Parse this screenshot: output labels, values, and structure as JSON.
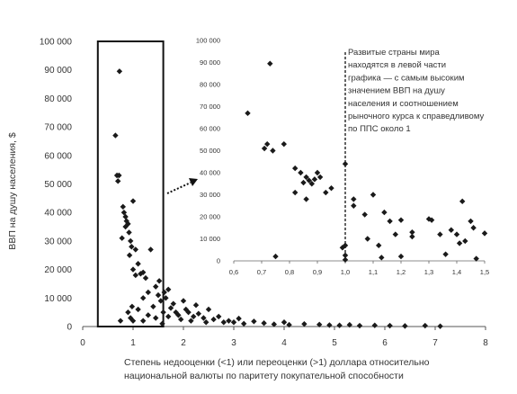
{
  "chart_data": [
    {
      "type": "scatter",
      "name": "main",
      "ylabel": "ВВП на душу населения, $",
      "xlabel_lines": [
        "Степень недооценки (<1) или переоценки (>1) доллара относительно",
        "национальной валюты по паритету покупательной способности"
      ],
      "xlim": [
        0,
        8
      ],
      "ylim": [
        0,
        100000
      ],
      "x_ticks": [
        0,
        1,
        2,
        3,
        4,
        5,
        6,
        7,
        8
      ],
      "x_tick_labels": [
        "0",
        "1",
        "2",
        "3",
        "4",
        "5",
        "6",
        "7",
        "8"
      ],
      "y_ticks": [
        0,
        10000,
        20000,
        30000,
        40000,
        50000,
        60000,
        70000,
        80000,
        90000,
        100000
      ],
      "y_tick_labels": [
        "0",
        "10 000",
        "20 000",
        "30 000",
        "40 000",
        "50 000",
        "60 000",
        "70 000",
        "80 000",
        "90 000",
        "100 000"
      ],
      "marker": "diamond",
      "marker_color": "#1a1a1a",
      "grid": false,
      "highlight_box_x": [
        0.3,
        1.6
      ],
      "highlight_box_y": [
        0,
        100000
      ],
      "points": [
        [
          0.73,
          89500
        ],
        [
          0.65,
          67000
        ],
        [
          0.68,
          53000
        ],
        [
          0.72,
          53000
        ],
        [
          0.7,
          51000
        ],
        [
          0.75,
          2000
        ],
        [
          0.8,
          42000
        ],
        [
          0.82,
          40000
        ],
        [
          0.85,
          38500
        ],
        [
          0.87,
          37000
        ],
        [
          0.9,
          36000
        ],
        [
          0.85,
          35000
        ],
        [
          0.92,
          33000
        ],
        [
          0.78,
          31000
        ],
        [
          0.95,
          30000
        ],
        [
          1.0,
          44000
        ],
        [
          0.97,
          28000
        ],
        [
          1.05,
          27000
        ],
        [
          0.93,
          25000
        ],
        [
          1.1,
          22000
        ],
        [
          1.0,
          20000
        ],
        [
          1.05,
          18000
        ],
        [
          1.15,
          18500
        ],
        [
          1.2,
          19000
        ],
        [
          1.25,
          17000
        ],
        [
          1.35,
          27000
        ],
        [
          0.98,
          7000
        ],
        [
          0.9,
          5000
        ],
        [
          0.95,
          3000
        ],
        [
          1.0,
          2000
        ],
        [
          1.1,
          6000
        ],
        [
          1.2,
          10000
        ],
        [
          1.3,
          12000
        ],
        [
          1.45,
          14000
        ],
        [
          1.5,
          11000
        ],
        [
          1.55,
          9000
        ],
        [
          1.4,
          7000
        ],
        [
          1.3,
          4000
        ],
        [
          1.2,
          2000
        ],
        [
          1.6,
          5000
        ],
        [
          1.7,
          13000
        ],
        [
          1.65,
          10000
        ],
        [
          1.8,
          8000
        ],
        [
          1.75,
          6500
        ],
        [
          1.85,
          5000
        ],
        [
          1.9,
          4000
        ],
        [
          2.0,
          9000
        ],
        [
          2.05,
          6000
        ],
        [
          2.1,
          5000
        ],
        [
          2.2,
          3500
        ],
        [
          2.3,
          4500
        ],
        [
          2.4,
          3000
        ],
        [
          1.95,
          2500
        ],
        [
          2.15,
          2000
        ],
        [
          2.5,
          6000
        ],
        [
          2.6,
          2500
        ],
        [
          2.7,
          3500
        ],
        [
          2.8,
          1500
        ],
        [
          2.9,
          2000
        ],
        [
          3.0,
          1500
        ],
        [
          3.2,
          1000
        ],
        [
          3.4,
          1800
        ],
        [
          3.6,
          1200
        ],
        [
          3.8,
          800
        ],
        [
          4.0,
          1500
        ],
        [
          4.1,
          600
        ],
        [
          4.4,
          900
        ],
        [
          4.7,
          700
        ],
        [
          4.9,
          500
        ],
        [
          5.1,
          400
        ],
        [
          5.3,
          600
        ],
        [
          5.5,
          300
        ],
        [
          5.8,
          400
        ],
        [
          6.1,
          300
        ],
        [
          6.4,
          200
        ],
        [
          6.8,
          300
        ],
        [
          7.1,
          100
        ],
        [
          1.58,
          1000
        ],
        [
          1.45,
          3000
        ],
        [
          1.7,
          3500
        ],
        [
          2.25,
          7500
        ],
        [
          2.45,
          1500
        ],
        [
          3.1,
          2800
        ],
        [
          1.52,
          16000
        ],
        [
          1.62,
          12000
        ]
      ]
    },
    {
      "type": "scatter",
      "name": "inset",
      "xlim": [
        0.6,
        1.5
      ],
      "ylim": [
        0,
        100000
      ],
      "x_ticks": [
        0.6,
        0.7,
        0.8,
        0.9,
        1.0,
        1.1,
        1.2,
        1.3,
        1.4,
        1.5
      ],
      "x_tick_labels": [
        "0,6",
        "0,7",
        "0,8",
        "0,9",
        "1,0",
        "1,1",
        "1,2",
        "1,3",
        "1,4",
        "1,5"
      ],
      "y_ticks": [
        0,
        10000,
        20000,
        30000,
        40000,
        50000,
        60000,
        70000,
        80000,
        90000,
        100000
      ],
      "y_tick_labels": [
        "0",
        "10 000",
        "20 000",
        "30 000",
        "40 000",
        "50 000",
        "60 000",
        "70 000",
        "80 000",
        "90 000",
        "100 000"
      ],
      "reference_line_x": 1.0,
      "marker": "diamond",
      "marker_color": "#1a1a1a",
      "grid": false,
      "annotation_lines": [
        "Развитые страны мира",
        "находятся в левой части",
        "графика — с самым высоким",
        "значением ВВП на душу",
        "населения и соотношением",
        "рыночного курса к справедливому",
        "по ППС около 1"
      ],
      "points": [
        [
          0.73,
          89500
        ],
        [
          0.65,
          67000
        ],
        [
          0.72,
          53000
        ],
        [
          0.71,
          51000
        ],
        [
          0.74,
          50000
        ],
        [
          0.78,
          53000
        ],
        [
          0.75,
          2000
        ],
        [
          0.82,
          42000
        ],
        [
          0.84,
          40000
        ],
        [
          0.86,
          38000
        ],
        [
          0.87,
          36500
        ],
        [
          0.85,
          35500
        ],
        [
          0.88,
          35000
        ],
        [
          0.9,
          40000
        ],
        [
          0.91,
          38000
        ],
        [
          0.89,
          37000
        ],
        [
          0.82,
          31000
        ],
        [
          0.86,
          28000
        ],
        [
          0.93,
          31000
        ],
        [
          0.95,
          33000
        ],
        [
          1.0,
          44000
        ],
        [
          1.0,
          7000
        ],
        [
          0.99,
          6000
        ],
        [
          1.0,
          2500
        ],
        [
          1.0,
          500
        ],
        [
          1.03,
          28000
        ],
        [
          1.03,
          25000
        ],
        [
          1.07,
          21000
        ],
        [
          1.1,
          30000
        ],
        [
          1.12,
          7000
        ],
        [
          1.14,
          22000
        ],
        [
          1.16,
          18000
        ],
        [
          1.18,
          12000
        ],
        [
          1.2,
          18500
        ],
        [
          1.24,
          13000
        ],
        [
          1.24,
          11000
        ],
        [
          1.2,
          2000
        ],
        [
          1.3,
          19000
        ],
        [
          1.31,
          18500
        ],
        [
          1.34,
          12000
        ],
        [
          1.36,
          3000
        ],
        [
          1.38,
          14000
        ],
        [
          1.4,
          12000
        ],
        [
          1.42,
          27000
        ],
        [
          1.41,
          8000
        ],
        [
          1.43,
          9000
        ],
        [
          1.45,
          18000
        ],
        [
          1.46,
          15000
        ],
        [
          1.47,
          1000
        ],
        [
          1.5,
          12500
        ],
        [
          1.13,
          1500
        ],
        [
          1.08,
          10000
        ]
      ]
    }
  ]
}
